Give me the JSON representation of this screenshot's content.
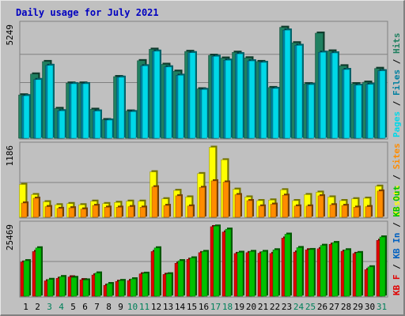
{
  "chart_data": {
    "type": "bar",
    "title": "Daily usage for July 2021",
    "categories": [
      "1",
      "2",
      "3",
      "4",
      "5",
      "6",
      "7",
      "8",
      "9",
      "10",
      "11",
      "12",
      "13",
      "14",
      "15",
      "16",
      "17",
      "18",
      "19",
      "20",
      "21",
      "22",
      "23",
      "24",
      "25",
      "26",
      "27",
      "28",
      "29",
      "30",
      "31"
    ],
    "weekend_days": [
      "3",
      "4",
      "10",
      "11",
      "17",
      "18",
      "24",
      "25",
      "31"
    ],
    "colors": {
      "title": "#0000c0",
      "pages": "#00d8e8",
      "files": "#0080a0",
      "hits": "#208060",
      "visits": "#ffff00",
      "sites": "#ff8c00",
      "kbf": "#e00000",
      "kbin": "#0060c0",
      "kbout": "#00c000",
      "weekend": "#00805a",
      "weekday": "#000000"
    },
    "panels": [
      {
        "id": "hits",
        "max_label": "5249",
        "ymax": 5249,
        "legend": [
          {
            "text": "Pages",
            "color": "#00d8e8"
          },
          {
            "text": " / ",
            "color": "#000000"
          },
          {
            "text": "Files",
            "color": "#0080a0"
          },
          {
            "text": " / ",
            "color": "#000000"
          },
          {
            "text": "Hits",
            "color": "#208060"
          }
        ],
        "series": [
          {
            "name": "Hits",
            "color": "#208060",
            "values": [
              2050,
              3020,
              3600,
              1420,
              2600,
              2600,
              1380,
              900,
              2900,
              1300,
              3640,
              4170,
              3470,
              3150,
              4070,
              2330,
              3890,
              3760,
              4030,
              3770,
              3600,
              2390,
              5190,
              4470,
              2570,
              4920,
              4090,
              3400,
              2570,
              2640,
              3280
            ]
          },
          {
            "name": "Files",
            "color": "#0080a0",
            "values": [
              2010,
              2760,
              3420,
              1310,
              2570,
              2570,
              1300,
              880,
              2870,
              1270,
              3400,
              4080,
              3350,
              2960,
              4010,
              2300,
              3840,
              3660,
              3960,
              3630,
              3560,
              2350,
              5060,
              4350,
              2530,
              4030,
              4000,
              3230,
              2500,
              2540,
              3170
            ]
          },
          {
            "name": "Pages",
            "color": "#00d8e8",
            "values": [
              2010,
              2760,
              3420,
              1310,
              2570,
              2570,
              1300,
              880,
              2870,
              1270,
              3400,
              4080,
              3350,
              2960,
              4010,
              2300,
              3840,
              3660,
              3960,
              3630,
              3560,
              2350,
              5060,
              4350,
              2530,
              4030,
              4000,
              3230,
              2500,
              2540,
              3170
            ]
          }
        ]
      },
      {
        "id": "visits",
        "max_label": "1186",
        "ymax": 1186,
        "legend": [
          {
            "text": "Visits",
            "color": "#ffff00"
          },
          {
            "text": " / ",
            "color": "#000000"
          },
          {
            "text": "Sites",
            "color": "#ff8c00"
          }
        ],
        "series": [
          {
            "name": "Visits",
            "color": "#ffff00",
            "values": [
              560,
              390,
              270,
              220,
              240,
              220,
              280,
              240,
              260,
              280,
              280,
              770,
              320,
              460,
              350,
              740,
              1180,
              970,
              480,
              350,
              290,
              300,
              470,
              290,
              390,
              430,
              350,
              290,
              320,
              330,
              530
            ]
          },
          {
            "name": "Sites",
            "color": "#ff8c00",
            "values": [
              250,
              330,
              190,
              160,
              170,
              150,
              210,
              180,
              180,
              190,
              180,
              520,
              210,
              370,
              200,
              510,
              620,
              600,
              390,
              290,
              200,
              230,
              380,
              200,
              200,
              370,
              220,
              210,
              180,
              190,
              450
            ]
          }
        ]
      },
      {
        "id": "kbytes",
        "max_label": "25469",
        "ymax": 25469,
        "legend": [
          {
            "text": "KB F",
            "color": "#e00000"
          },
          {
            "text": " / ",
            "color": "#000000"
          },
          {
            "text": "KB In",
            "color": "#0060c0"
          },
          {
            "text": " / ",
            "color": "#000000"
          },
          {
            "text": "KB Out",
            "color": "#00c000"
          }
        ],
        "series": [
          {
            "name": "KB F",
            "color": "#e00000",
            "values": [
              12500,
              16300,
              5800,
              6700,
              7200,
              6200,
              7900,
              4200,
              5600,
              5900,
              8300,
              16300,
              8100,
              12100,
              13500,
              15900,
              25200,
              23300,
              15600,
              15900,
              15700,
              15600,
              21100,
              16100,
              16900,
              17300,
              18900,
              16400,
              15600,
              9800,
              20300
            ]
          },
          {
            "name": "KB Out",
            "color": "#00c000",
            "values": [
              13000,
              17600,
              6300,
              7300,
              7000,
              6100,
              8600,
              4800,
              5900,
              6500,
              8500,
              17600,
              8300,
              13000,
              14000,
              16300,
              25400,
              24300,
              16000,
              16300,
              16300,
              16900,
              22500,
              17700,
              17000,
              18500,
              19500,
              16900,
              15900,
              10800,
              21500
            ]
          }
        ]
      }
    ]
  }
}
